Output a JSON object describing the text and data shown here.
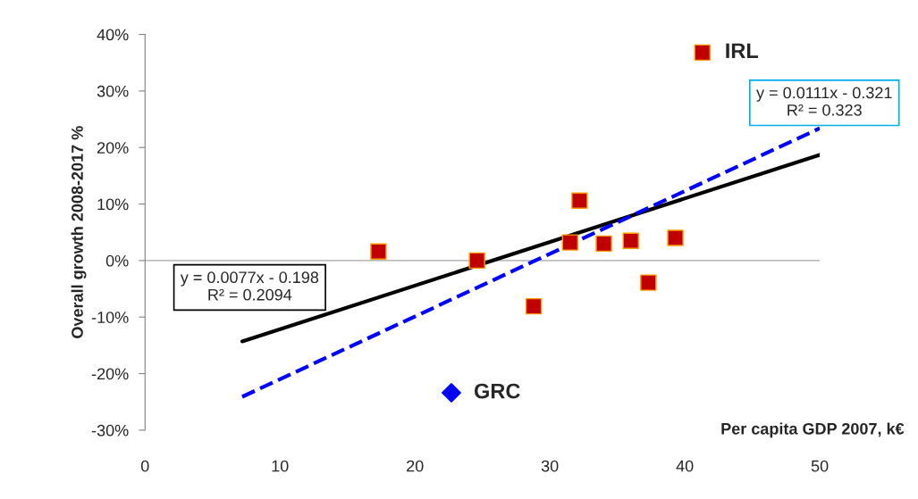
{
  "chart_data": {
    "type": "scatter",
    "xlabel": "Per capita GDP 2007, k€",
    "ylabel": "Overall growth 2008-2017 %",
    "xlim": [
      0,
      50
    ],
    "xticks": [
      0,
      10,
      20,
      30,
      40,
      50
    ],
    "ylim": [
      -30,
      40
    ],
    "yticks": [
      {
        "value": -30,
        "label": "-30%"
      },
      {
        "value": -20,
        "label": "-20%"
      },
      {
        "value": -10,
        "label": "-10%"
      },
      {
        "value": 0,
        "label": "0%"
      },
      {
        "value": 10,
        "label": "10%"
      },
      {
        "value": 20,
        "label": "20%"
      },
      {
        "value": 30,
        "label": "30%"
      },
      {
        "value": 40,
        "label": "40%"
      }
    ],
    "grid": false,
    "series": [
      {
        "marker": "square",
        "color": "#c00000",
        "x": [
          17.3,
          24.6,
          28.8,
          31.5,
          32.2,
          34.0,
          36.0,
          37.3,
          39.3,
          41.3
        ],
        "values": [
          1.6,
          0.0,
          -8.1,
          3.2,
          10.6,
          3.0,
          3.5,
          -3.9,
          4.0,
          36.8
        ]
      },
      {
        "marker": "diamond",
        "color": "#0000ff",
        "x": [
          22.7
        ],
        "values": [
          -23.4
        ]
      },
      {
        "type": "line",
        "line_style": "solid",
        "color": "#000000",
        "x": [
          7.2,
          50
        ],
        "values": [
          -14.3,
          18.7
        ]
      },
      {
        "type": "line",
        "line_style": "dashed",
        "color": "#0000ff",
        "x": [
          7.2,
          50
        ],
        "values": [
          -24.1,
          23.4
        ]
      }
    ],
    "ref_lines": [
      {
        "axis": "y",
        "value": 0,
        "color": "#a6a6a6"
      }
    ],
    "annotations": [
      {
        "text": "IRL",
        "x": 41.3,
        "y": 36.8
      },
      {
        "text": "GRC",
        "x": 22.7,
        "y": -23.4
      },
      "y = 0.0077x - 0.198\nR² = 0.2094",
      "y = 0.0111x - 0.321\nR² = 0.323"
    ]
  }
}
